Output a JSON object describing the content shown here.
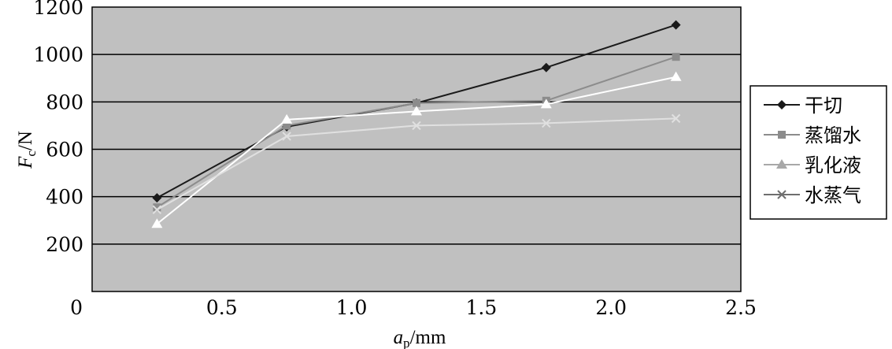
{
  "chart_data": {
    "type": "line",
    "x": [
      0.25,
      0.75,
      1.25,
      1.75,
      2.25
    ],
    "series": [
      {
        "name": "干切",
        "values": [
          395,
          695,
          795,
          945,
          1125
        ],
        "color": "#1a1a1a",
        "marker": "diamond"
      },
      {
        "name": "蒸馏水",
        "values": [
          355,
          700,
          795,
          805,
          990
        ],
        "color": "#8c8c8c",
        "marker": "square"
      },
      {
        "name": "乳化液",
        "values": [
          285,
          725,
          760,
          790,
          905
        ],
        "color": "#ffffff",
        "marker": "triangle"
      },
      {
        "name": "水蒸气",
        "values": [
          345,
          655,
          700,
          710,
          730
        ],
        "color": "#e0e0e0",
        "marker": "x"
      }
    ],
    "xlim": [
      0,
      2.5
    ],
    "ylim": [
      0,
      1200
    ],
    "xticks": [
      "0",
      "0.5",
      "1.0",
      "1.5",
      "2.0",
      "2.5"
    ],
    "yticks": [
      "200",
      "400",
      "600",
      "800",
      "1000",
      "1200"
    ],
    "xlabel": {
      "main": "a",
      "sub": "p",
      "unit": "/mm"
    },
    "ylabel": {
      "main": "F",
      "sub": "c",
      "unit": "/N"
    },
    "grid": "horizontal",
    "legend_position": "right",
    "plot_background": "#c0c0c0"
  }
}
